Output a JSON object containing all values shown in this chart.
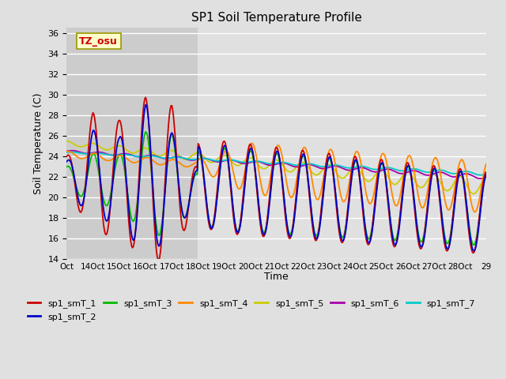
{
  "title": "SP1 Soil Temperature Profile",
  "xlabel": "Time",
  "ylabel": "Soil Temperature (C)",
  "tz_label": "TZ_osu",
  "ylim": [
    14,
    36.5
  ],
  "yticks": [
    14,
    16,
    18,
    20,
    22,
    24,
    26,
    28,
    30,
    32,
    34,
    36
  ],
  "x_tick_labels": [
    "Oct",
    "14Oct",
    "15Oct",
    "16Oct",
    "17Oct",
    "18Oct",
    "19Oct",
    "20Oct",
    "21Oct",
    "22Oct",
    "23Oct",
    "24Oct",
    "25Oct",
    "26Oct",
    "27Oct",
    "28Oct",
    "29"
  ],
  "background_color": "#e0e0e0",
  "plot_bg_color": "#e0e0e0",
  "shaded_bg_color": "#cccccc",
  "grid_color": "#ffffff",
  "series_colors": {
    "sp1_smT_1": "#cc0000",
    "sp1_smT_2": "#0000cc",
    "sp1_smT_3": "#00bb00",
    "sp1_smT_4": "#ff8800",
    "sp1_smT_5": "#cccc00",
    "sp1_smT_6": "#aa00aa",
    "sp1_smT_7": "#00cccc"
  },
  "n_points": 480
}
